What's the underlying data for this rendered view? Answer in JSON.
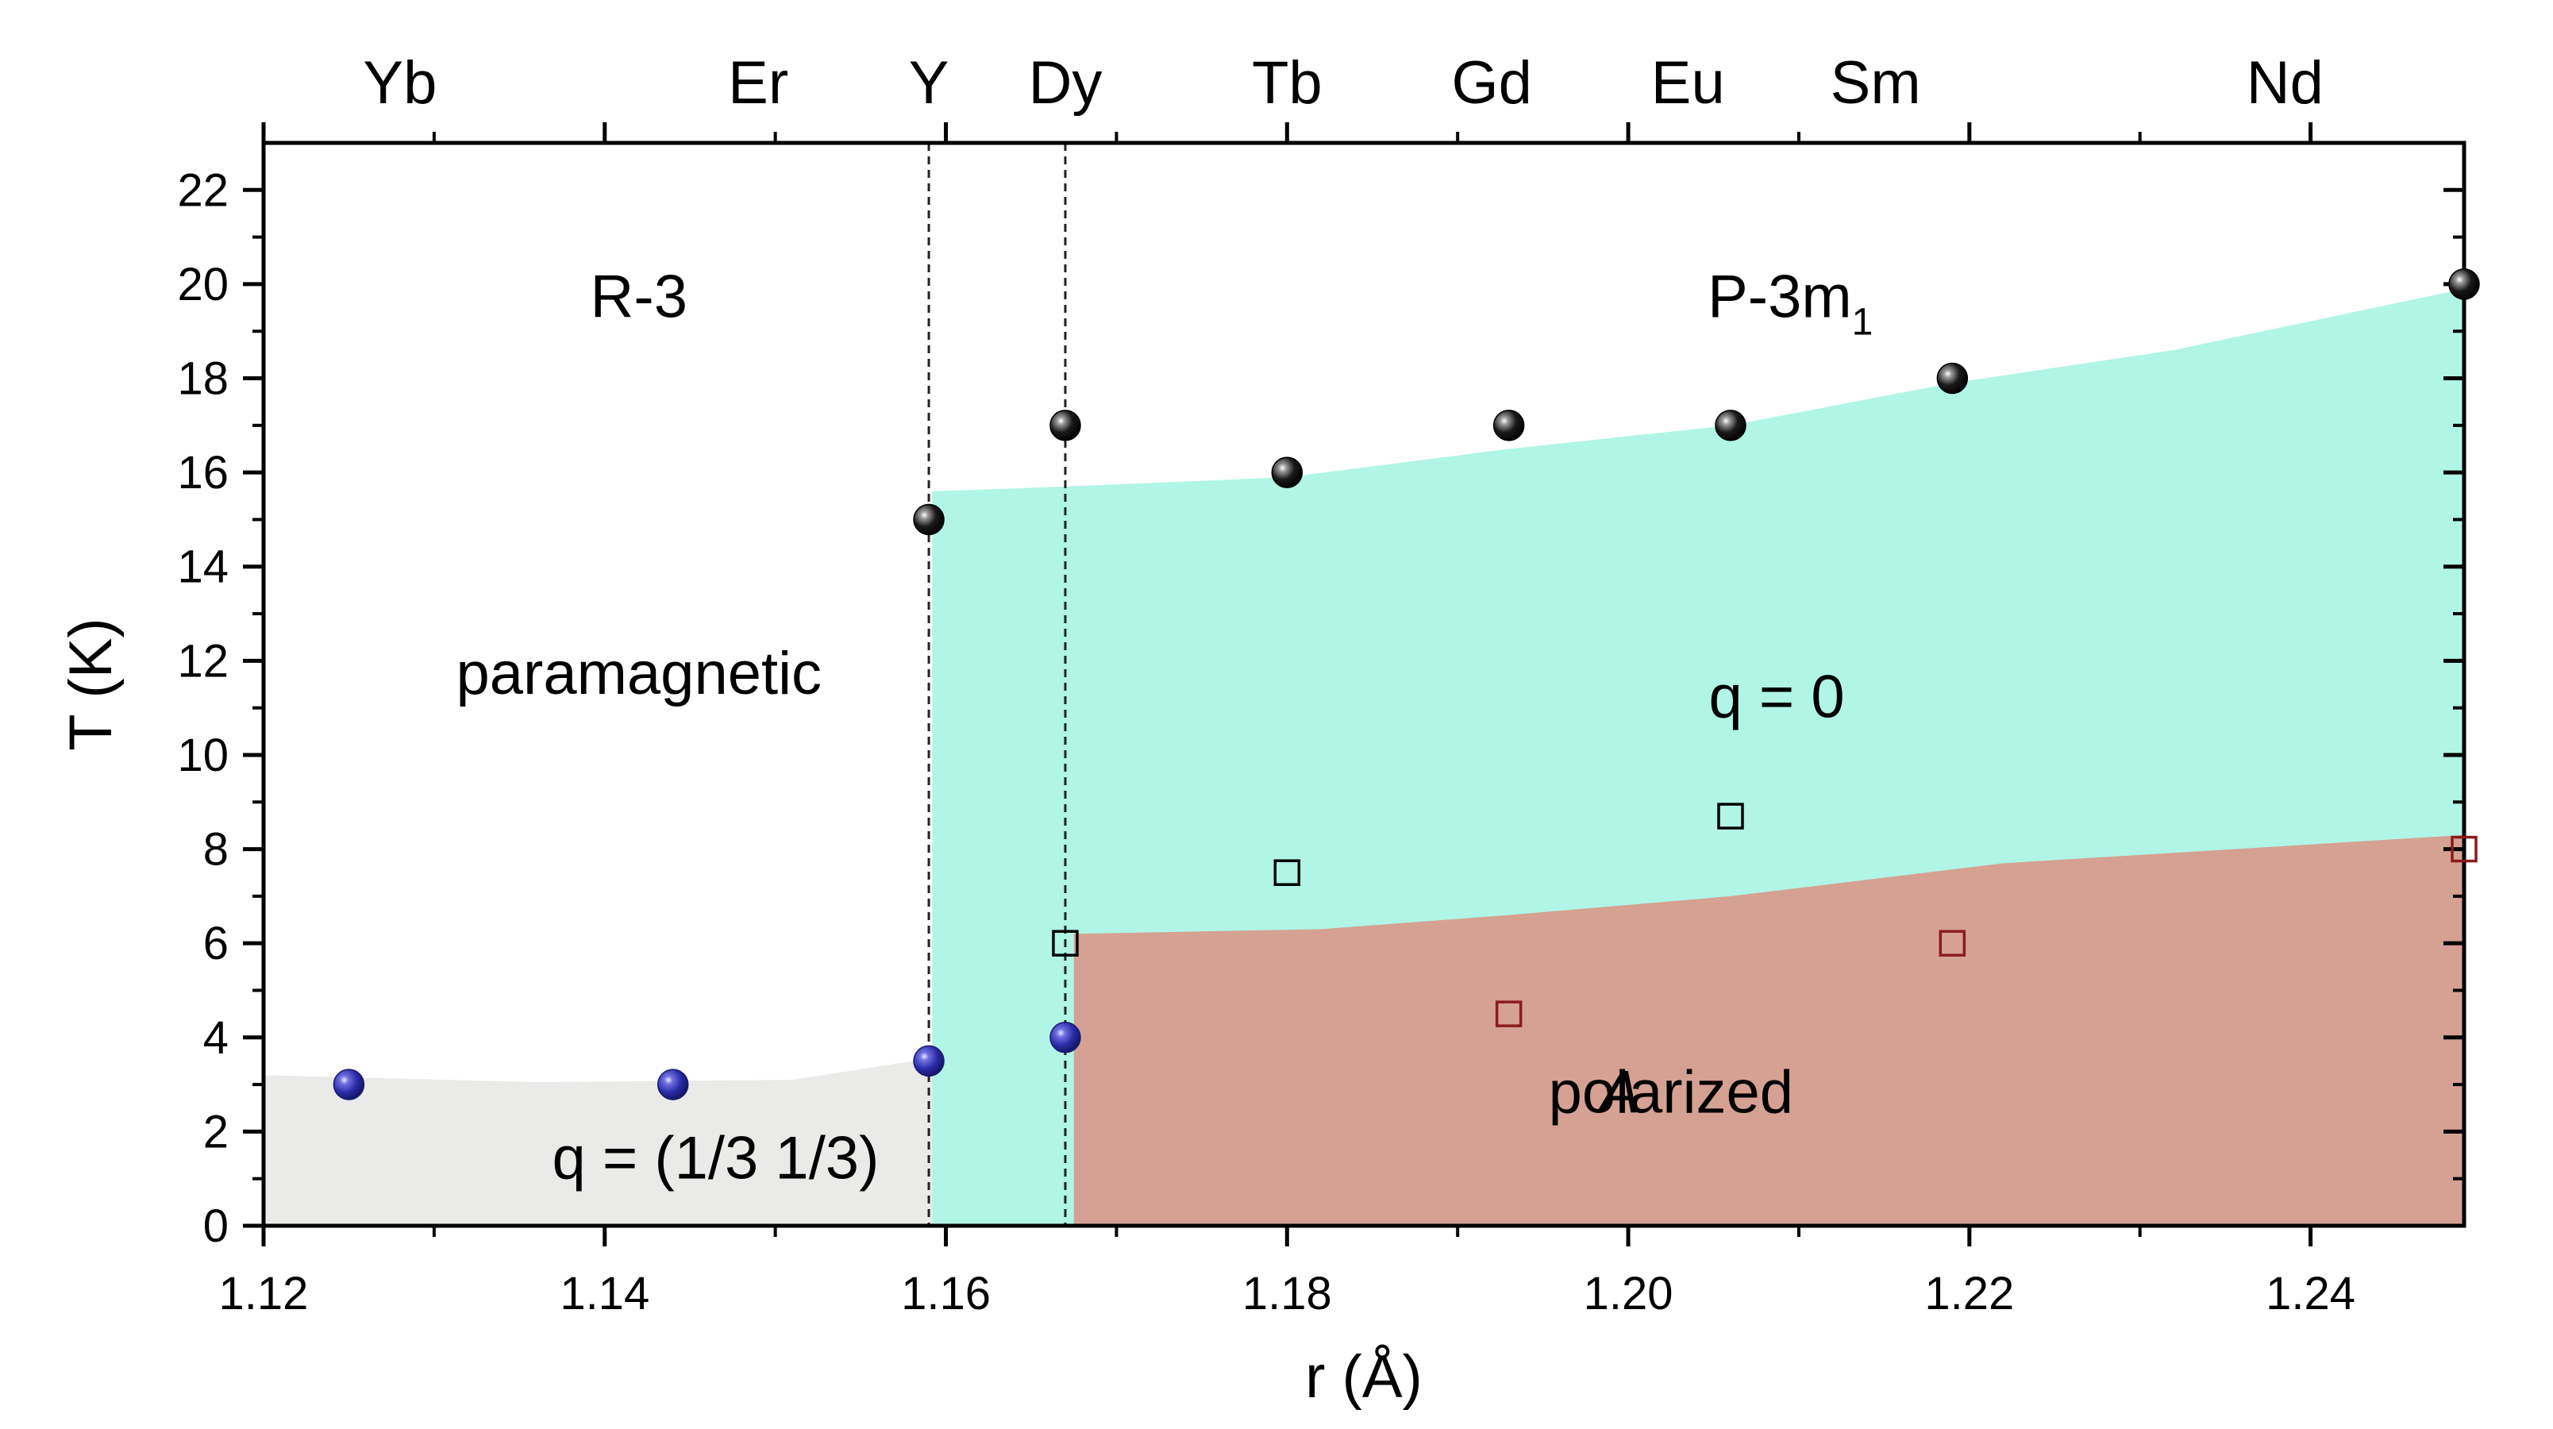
{
  "chart_data": {
    "type": "scatter",
    "xlabel": "r (Å)",
    "ylabel": "T (K)",
    "xlim": [
      1.12,
      1.249
    ],
    "ylim": [
      0,
      23
    ],
    "x_ticks": [
      "1.12",
      "1.14",
      "1.16",
      "1.18",
      "1.20",
      "1.22",
      "1.24"
    ],
    "y_ticks": [
      "0",
      "2",
      "4",
      "6",
      "8",
      "10",
      "12",
      "14",
      "16",
      "18",
      "20",
      "22"
    ],
    "grid": false,
    "top_labels": [
      {
        "label": "Yb",
        "x": 1.128
      },
      {
        "label": "Er",
        "x": 1.149
      },
      {
        "label": "Y",
        "x": 1.159
      },
      {
        "label": "Dy",
        "x": 1.167
      },
      {
        "label": "Tb",
        "x": 1.18
      },
      {
        "label": "Gd",
        "x": 1.192
      },
      {
        "label": "Eu",
        "x": 1.2035
      },
      {
        "label": "Sm",
        "x": 1.2145
      },
      {
        "label": "Nd",
        "x": 1.2385
      }
    ],
    "vlines": [
      1.159,
      1.167
    ],
    "series": [
      {
        "marker": "black-sphere",
        "color": "#111111",
        "x": [
          1.159,
          1.167,
          1.18,
          1.193,
          1.206,
          1.219,
          1.249
        ],
        "y": [
          15,
          17,
          16,
          17,
          17,
          18,
          20
        ]
      },
      {
        "marker": "blue-sphere",
        "color": "#3a3ab8",
        "x": [
          1.125,
          1.144,
          1.159,
          1.167
        ],
        "y": [
          3,
          3,
          3.5,
          4
        ]
      },
      {
        "marker": "open-square",
        "color": "#000000",
        "x": [
          1.167,
          1.18,
          1.206
        ],
        "y": [
          6,
          7.5,
          8.7
        ]
      },
      {
        "marker": "open-square",
        "color": "#8a1c1c",
        "x": [
          1.193,
          1.219,
          1.249
        ],
        "y": [
          4.5,
          6,
          8
        ]
      }
    ],
    "regions": [
      {
        "label": "q = (1/3 1/3)",
        "color": "#e9e9e7",
        "polygon": [
          [
            1.12,
            0
          ],
          [
            1.12,
            3.2
          ],
          [
            1.136,
            3.05
          ],
          [
            1.151,
            3.1
          ],
          [
            1.159,
            3.55
          ],
          [
            1.167,
            4.1
          ],
          [
            1.174,
            4.3
          ],
          [
            1.174,
            0
          ]
        ]
      },
      {
        "label": "q = 0",
        "color": "#b0f5e6",
        "polygon": [
          [
            1.1592,
            0
          ],
          [
            1.1592,
            15.6
          ],
          [
            1.167,
            15.7
          ],
          [
            1.18,
            15.9
          ],
          [
            1.193,
            16.5
          ],
          [
            1.206,
            17.0
          ],
          [
            1.219,
            17.9
          ],
          [
            1.232,
            18.6
          ],
          [
            1.249,
            19.9
          ],
          [
            1.249,
            0
          ]
        ]
      },
      {
        "label": "A polarized",
        "color": "#d69e90",
        "polygon": [
          [
            1.1675,
            0
          ],
          [
            1.1675,
            6.2
          ],
          [
            1.182,
            6.3
          ],
          [
            1.193,
            6.6
          ],
          [
            1.206,
            7.0
          ],
          [
            1.222,
            7.7
          ],
          [
            1.249,
            8.3
          ],
          [
            1.249,
            0
          ]
        ]
      }
    ],
    "annotations": [
      {
        "text": "R-3",
        "x": 1.142,
        "y": 19.3
      },
      {
        "text": "P-3m",
        "sub": "1",
        "x": 1.2095,
        "y": 19.3
      },
      {
        "text": "paramagnetic",
        "x": 1.142,
        "y": 11.3
      },
      {
        "text": "q = 0",
        "x": 1.2087,
        "y": 10.8
      },
      {
        "text": "A",
        "x": 1.1995,
        "y": 2.4
      },
      {
        "text": "polarized",
        "x": 1.2025,
        "y": 2.4
      },
      {
        "text": "q = (1/3 1/3)",
        "x": 1.1465,
        "y": 1.0
      }
    ]
  }
}
